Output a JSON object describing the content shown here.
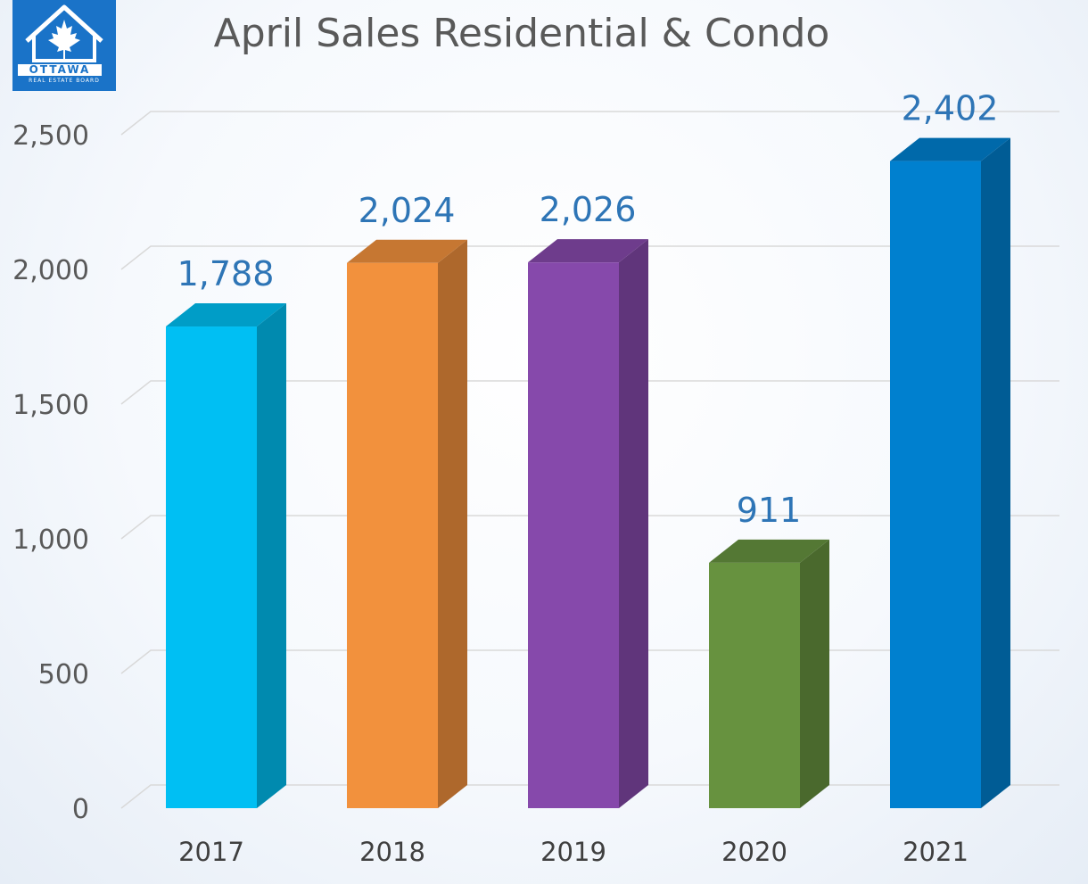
{
  "logo": {
    "name": "OTTAWA",
    "subtitle": "REAL ESTATE BOARD"
  },
  "chart_data": {
    "type": "bar",
    "title": "April Sales Residential & Condo",
    "xlabel": "",
    "ylabel": "",
    "categories": [
      "2017",
      "2018",
      "2019",
      "2020",
      "2021"
    ],
    "values": [
      1788,
      2024,
      2026,
      911,
      2402
    ],
    "value_labels": [
      "1,788",
      "2,024",
      "2,026",
      "911",
      "2,402"
    ],
    "ylim": [
      0,
      2500
    ],
    "yticks": [
      0,
      500,
      1000,
      1500,
      2000,
      2500
    ],
    "ytick_labels": [
      "0",
      "500",
      "1,000",
      "1,500",
      "2,000",
      "2,500"
    ],
    "grid": true,
    "legend": "none",
    "bar_colors": [
      "#00bff3",
      "#f2913d",
      "#8649ab",
      "#67923f",
      "#0080cf"
    ],
    "label_color": "#2e75b6"
  }
}
